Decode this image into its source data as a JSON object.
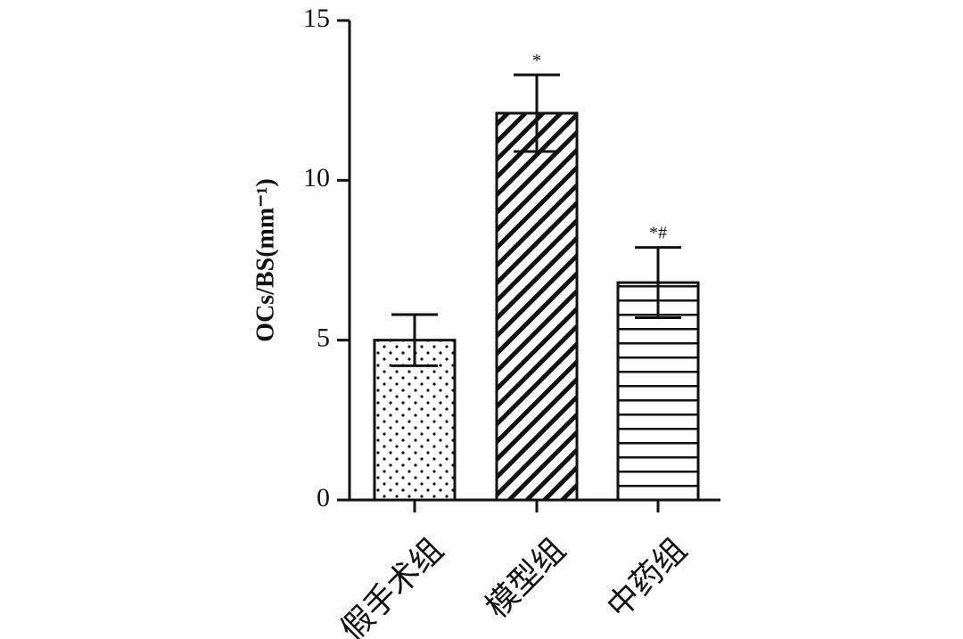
{
  "chart_data": {
    "type": "bar",
    "categories": [
      "假手术组",
      "模型组",
      "中药组"
    ],
    "values": [
      5.0,
      12.1,
      6.8
    ],
    "errors": [
      0.8,
      1.2,
      1.1
    ],
    "significance": [
      "",
      "*",
      "*#"
    ],
    "patterns": [
      "dots",
      "diagonal",
      "horizontal"
    ],
    "ylabel": "OCs/BS(mm⁻¹)",
    "ylim": [
      0,
      15
    ],
    "yticks": [
      0,
      5,
      10,
      15
    ],
    "grid": false,
    "legend": "none"
  },
  "colors": {
    "ink": "#111111",
    "background": "#ffffff"
  }
}
